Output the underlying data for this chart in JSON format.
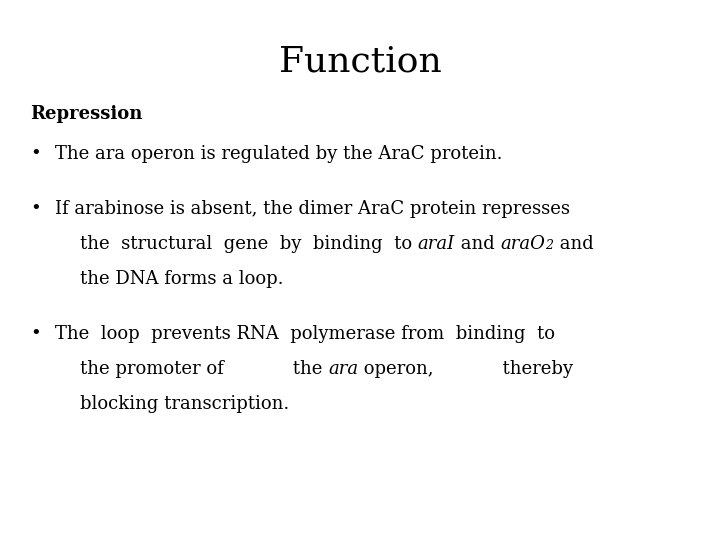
{
  "title": "Function",
  "background_color": "#ffffff",
  "text_color": "#000000",
  "title_fontsize": 26,
  "body_fontsize": 13,
  "repression_fontsize": 13,
  "font_family": "DejaVu Serif"
}
